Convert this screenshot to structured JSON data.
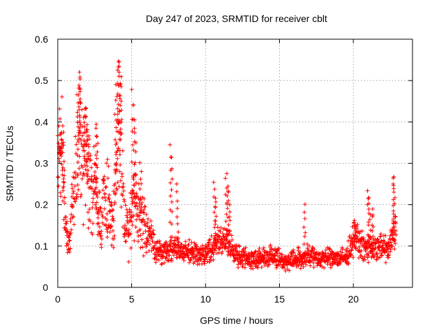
{
  "chart_data": {
    "type": "scatter",
    "title": "Day 247 of 2023, SRMTID for receiver cblt",
    "xlabel": "GPS time / hours",
    "ylabel": "SRMTID / TECUs",
    "xlim": [
      0,
      24
    ],
    "ylim": [
      0,
      0.6
    ],
    "xticks": [
      0,
      5,
      10,
      15,
      20
    ],
    "yticks": [
      0,
      0.1,
      0.2,
      0.3,
      0.4,
      0.5,
      0.6
    ],
    "xtick_labels": [
      "0",
      "5",
      "10",
      "15",
      "20"
    ],
    "ytick_labels": [
      "0",
      "0.1",
      "0.2",
      "0.3",
      "0.4",
      "0.5",
      "0.6"
    ],
    "grid": true,
    "marker": "plus",
    "series": [
      {
        "name": "SRMTID",
        "color": "#ff0000",
        "profile": [
          [
            0.0,
            0.26
          ],
          [
            0.1,
            0.3
          ],
          [
            0.2,
            0.33
          ],
          [
            0.35,
            0.3
          ],
          [
            0.45,
            0.2
          ],
          [
            0.6,
            0.12
          ],
          [
            0.75,
            0.09
          ],
          [
            0.9,
            0.16
          ],
          [
            1.1,
            0.22
          ],
          [
            1.3,
            0.3
          ],
          [
            1.5,
            0.38
          ],
          [
            1.7,
            0.33
          ],
          [
            1.9,
            0.3
          ],
          [
            2.1,
            0.25
          ],
          [
            2.3,
            0.22
          ],
          [
            2.5,
            0.26
          ],
          [
            2.7,
            0.18
          ],
          [
            2.9,
            0.16
          ],
          [
            3.1,
            0.2
          ],
          [
            3.3,
            0.22
          ],
          [
            3.5,
            0.19
          ],
          [
            3.7,
            0.15
          ],
          [
            3.9,
            0.22
          ],
          [
            4.1,
            0.38
          ],
          [
            4.3,
            0.32
          ],
          [
            4.5,
            0.16
          ],
          [
            4.8,
            0.12
          ],
          [
            5.1,
            0.22
          ],
          [
            5.4,
            0.18
          ],
          [
            5.8,
            0.16
          ],
          [
            6.2,
            0.13
          ],
          [
            6.6,
            0.09
          ],
          [
            7.0,
            0.08
          ],
          [
            7.5,
            0.09
          ],
          [
            8.0,
            0.1
          ],
          [
            8.5,
            0.08
          ],
          [
            9.0,
            0.09
          ],
          [
            9.5,
            0.08
          ],
          [
            10.0,
            0.08
          ],
          [
            10.5,
            0.1
          ],
          [
            11.0,
            0.11
          ],
          [
            11.5,
            0.12
          ],
          [
            12.0,
            0.08
          ],
          [
            12.5,
            0.07
          ],
          [
            13.0,
            0.07
          ],
          [
            13.5,
            0.07
          ],
          [
            14.0,
            0.07
          ],
          [
            14.5,
            0.08
          ],
          [
            15.0,
            0.07
          ],
          [
            15.5,
            0.06
          ],
          [
            16.0,
            0.07
          ],
          [
            16.5,
            0.07
          ],
          [
            17.0,
            0.08
          ],
          [
            17.5,
            0.07
          ],
          [
            18.0,
            0.07
          ],
          [
            18.5,
            0.07
          ],
          [
            19.0,
            0.07
          ],
          [
            19.5,
            0.07
          ],
          [
            20.0,
            0.12
          ],
          [
            20.4,
            0.11
          ],
          [
            20.8,
            0.09
          ],
          [
            21.2,
            0.1
          ],
          [
            21.6,
            0.09
          ],
          [
            22.0,
            0.1
          ],
          [
            22.4,
            0.09
          ],
          [
            22.8,
            0.14
          ]
        ],
        "spikes": [
          [
            0.15,
            0.345
          ],
          [
            0.25,
            0.36
          ],
          [
            0.4,
            0.37
          ],
          [
            1.35,
            0.46
          ],
          [
            1.5,
            0.5
          ],
          [
            1.45,
            0.48
          ],
          [
            1.8,
            0.42
          ],
          [
            1.95,
            0.43
          ],
          [
            2.05,
            0.38
          ],
          [
            2.55,
            0.4
          ],
          [
            2.65,
            0.37
          ],
          [
            3.9,
            0.49
          ],
          [
            4.0,
            0.52
          ],
          [
            4.1,
            0.55
          ],
          [
            4.2,
            0.54
          ],
          [
            4.25,
            0.51
          ],
          [
            5.05,
            0.48
          ],
          [
            5.15,
            0.44
          ],
          [
            5.25,
            0.4
          ],
          [
            5.6,
            0.3
          ],
          [
            7.6,
            0.35
          ],
          [
            7.7,
            0.32
          ],
          [
            8.1,
            0.25
          ],
          [
            10.6,
            0.26
          ],
          [
            10.7,
            0.22
          ],
          [
            11.4,
            0.28
          ],
          [
            11.5,
            0.25
          ],
          [
            11.6,
            0.23
          ],
          [
            16.7,
            0.195
          ],
          [
            20.1,
            0.16
          ],
          [
            21.0,
            0.23
          ],
          [
            21.1,
            0.22
          ],
          [
            21.3,
            0.19
          ],
          [
            22.7,
            0.26
          ],
          [
            22.75,
            0.27
          ]
        ]
      }
    ]
  }
}
